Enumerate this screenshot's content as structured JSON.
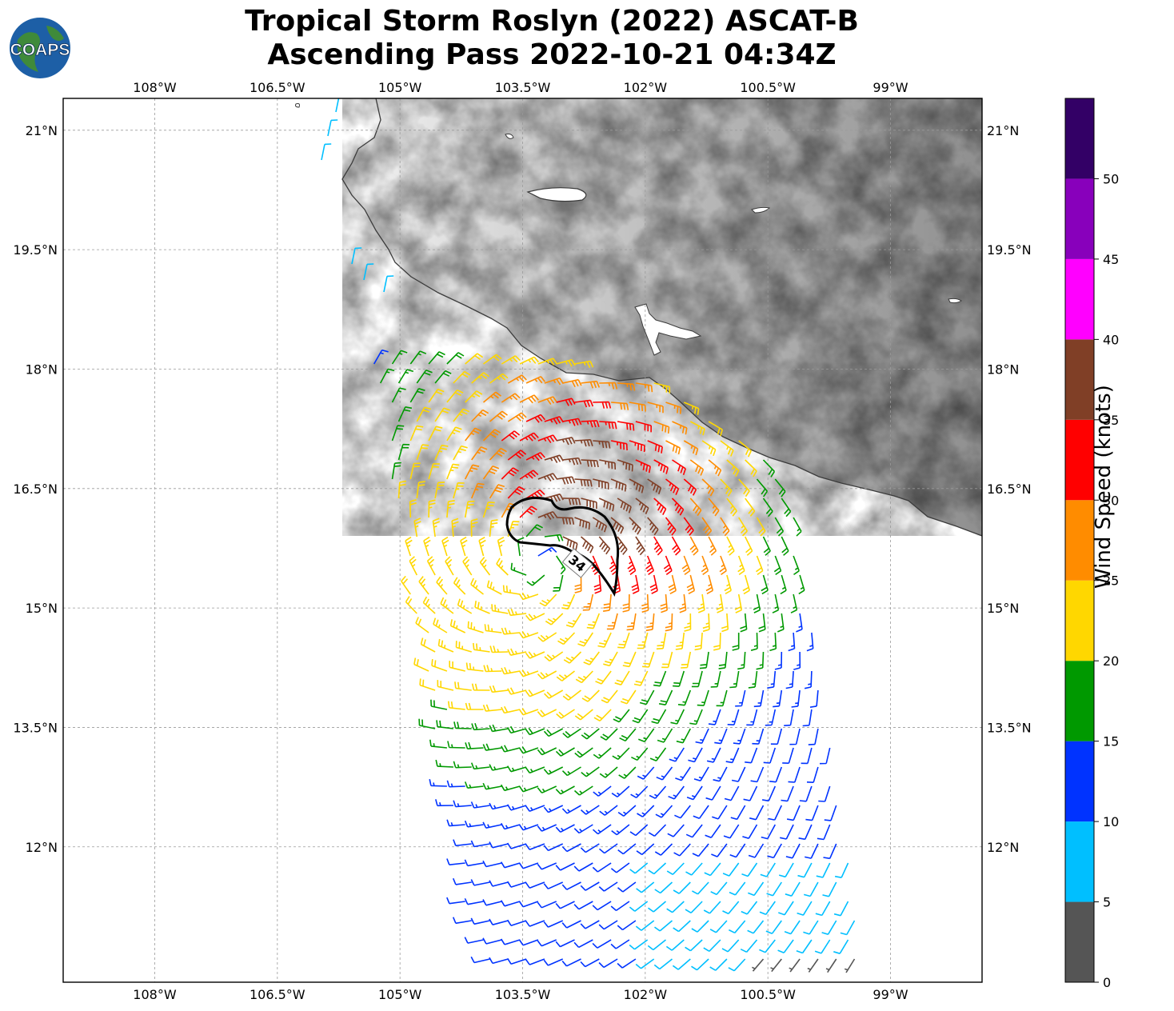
{
  "title": {
    "line1": "Tropical Storm Roslyn (2022) ASCAT-B",
    "line2": "Ascending Pass 2022-10-21 04:34Z"
  },
  "logo": {
    "text": "COAPS"
  },
  "map": {
    "lon_range": [
      -109.12,
      -97.88
    ],
    "lat_range": [
      10.3,
      21.4
    ],
    "lon_ticks": [
      {
        "value": -108,
        "label": "108°W"
      },
      {
        "value": -106.5,
        "label": "106.5°W"
      },
      {
        "value": -105,
        "label": "105°W"
      },
      {
        "value": -103.5,
        "label": "103.5°W"
      },
      {
        "value": -102,
        "label": "102°W"
      },
      {
        "value": -100.5,
        "label": "100.5°W"
      },
      {
        "value": -99,
        "label": "99°W"
      }
    ],
    "lat_ticks": [
      {
        "value": 21,
        "label": "21°N"
      },
      {
        "value": 19.5,
        "label": "19.5°N"
      },
      {
        "value": 18,
        "label": "18°N"
      },
      {
        "value": 16.5,
        "label": "16.5°N"
      },
      {
        "value": 15,
        "label": "15°N"
      },
      {
        "value": 13.5,
        "label": "13.5°N"
      },
      {
        "value": 12,
        "label": "12°N"
      }
    ],
    "storm_center": {
      "lon": -103.3,
      "lat": 15.6
    },
    "contour_label": "34"
  },
  "colorbar": {
    "label": "Wind Speed (knots)",
    "ticks": [
      "0",
      "5",
      "10",
      "15",
      "20",
      "25",
      "30",
      "35",
      "40",
      "45",
      "50"
    ],
    "bins": [
      {
        "min": 0,
        "max": 5,
        "color": "#555555"
      },
      {
        "min": 5,
        "max": 10,
        "color": "#00bfff"
      },
      {
        "min": 10,
        "max": 15,
        "color": "#0033ff"
      },
      {
        "min": 15,
        "max": 20,
        "color": "#009900"
      },
      {
        "min": 20,
        "max": 25,
        "color": "#ffd700"
      },
      {
        "min": 25,
        "max": 30,
        "color": "#ff8c00"
      },
      {
        "min": 30,
        "max": 35,
        "color": "#ff0000"
      },
      {
        "min": 35,
        "max": 40,
        "color": "#803f26"
      },
      {
        "min": 40,
        "max": 45,
        "color": "#ff00ff"
      },
      {
        "min": 45,
        "max": 50,
        "color": "#8800bb"
      },
      {
        "min": 50,
        "max": 55,
        "color": "#330066"
      }
    ]
  }
}
